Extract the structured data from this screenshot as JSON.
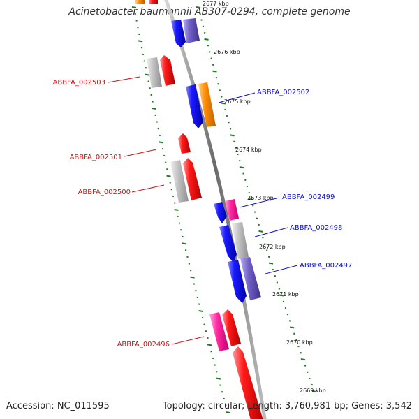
{
  "title": "Acinetobacter baumannii AB307-0294, complete genome",
  "footer": {
    "accession": "Accession: NC_011595",
    "summary": "Topology: circular; Length: 3,760,981 bp; Genes: 3,542"
  },
  "ruler_labels": [
    "2677 kbp",
    "2676 kbp",
    "2675 kbp",
    "2674 kbp",
    "2673 kbp",
    "2672 kbp",
    "2671 kbp",
    "2670 kbp",
    "2669 kbp"
  ],
  "gene_labels": [
    {
      "text": "ABBFA_002503",
      "strand": "reverse"
    },
    {
      "text": "ABBFA_002502",
      "strand": "forward"
    },
    {
      "text": "ABBFA_002501",
      "strand": "reverse"
    },
    {
      "text": "ABBFA_002500",
      "strand": "reverse"
    },
    {
      "text": "ABBFA_002499",
      "strand": "forward"
    },
    {
      "text": "ABBFA_002498",
      "strand": "forward"
    },
    {
      "text": "ABBFA_002497",
      "strand": "forward"
    },
    {
      "text": "ABBFA_002496",
      "strand": "reverse"
    }
  ],
  "colors": {
    "forward_label": "#1010c8",
    "reverse_label": "#cc1111",
    "backbone": "#8a8a8a",
    "ruler_tick": "#1e7a1e",
    "red_gene": "#ff1111",
    "blue_gene": "#1a1aff",
    "grey_gene": "#c0c0c0",
    "orange_gene": "#ff8c00",
    "pink_gene": "#ff2aa0",
    "purple_gene": "#7060c8"
  }
}
